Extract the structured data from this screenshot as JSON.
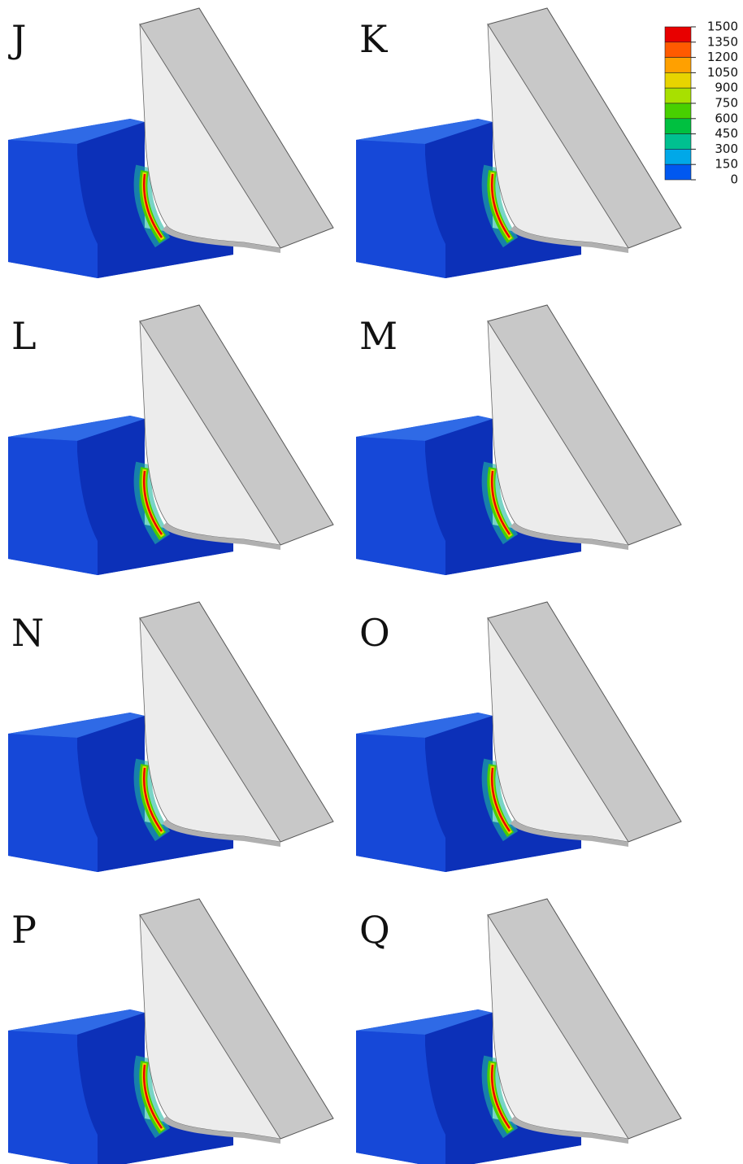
{
  "panels": [
    {
      "label": "J"
    },
    {
      "label": "K"
    },
    {
      "label": "L"
    },
    {
      "label": "M"
    },
    {
      "label": "N"
    },
    {
      "label": "O"
    },
    {
      "label": "P"
    },
    {
      "label": "Q"
    }
  ],
  "legend": {
    "ticks": [
      1500,
      1350,
      1200,
      1050,
      900,
      750,
      600,
      450,
      300,
      150,
      0
    ],
    "colors": [
      "#e80000",
      "#ff5a00",
      "#ffa000",
      "#e8d400",
      "#a8e000",
      "#48d000",
      "#00c040",
      "#00c090",
      "#00a8e8",
      "#0058f0"
    ]
  }
}
